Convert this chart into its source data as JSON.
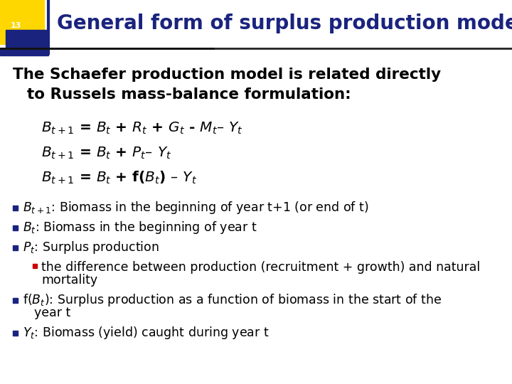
{
  "title": "General form of surplus production models",
  "slide_number": "13",
  "title_color": "#1a237e",
  "title_bg_yellow": "#FFD700",
  "title_bg_blue": "#1a237e",
  "title_bg_red": "#e8a0a0",
  "title_divider_color": "#333333",
  "body_bg": "#ffffff",
  "intro_line1": "The Schaefer production model is related directly",
  "intro_line2": "to Russels mass-balance formulation:",
  "eq1": "$B_{t+1}$ = $B_t$ + $R_t$ + $G_t$ - $M_t$– $Y_t$",
  "eq2": "$B_{t+1}$ = $B_t$ + $P_t$– $Y_t$",
  "eq3": "$B_{t+1}$ = $B_t$ + f($B_t$) – $Y_t$",
  "bullet1": "$B_{t+1}$: Biomass in the beginning of year t+1 (or end of t)",
  "bullet2": "$B_t$: Biomass in the beginning of year t",
  "bullet3": "$P_t$: Surplus production",
  "sub_bullet_line1": "the difference between production (recruitment + growth) and natural",
  "sub_bullet_line2": "mortality",
  "bullet4_line1": "f($B_t$): Surplus production as a function of biomass in the start of the",
  "bullet4_line2": "year t",
  "bullet5": "$Y_t$: Biomass (yield) caught during year t",
  "bullet_color": "#1a237e",
  "sub_bullet_color": "#cc0000",
  "text_color": "#000000",
  "font_size_title": 20,
  "font_size_intro": 15.5,
  "font_size_eq": 14.5,
  "font_size_bullet": 12.5
}
